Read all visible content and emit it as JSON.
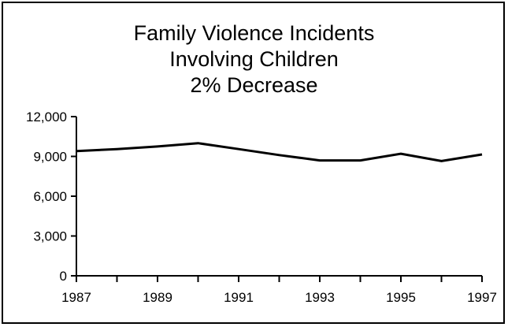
{
  "chart_data": {
    "type": "line",
    "title": [
      "Family Violence Incidents",
      "Involving Children",
      "2% Decrease"
    ],
    "xlabel": "",
    "ylabel": "",
    "x": [
      1987,
      1988,
      1989,
      1990,
      1991,
      1992,
      1993,
      1994,
      1995,
      1996,
      1997
    ],
    "x_tick_labels": [
      "1987",
      "1989",
      "1991",
      "1993",
      "1995",
      "1997"
    ],
    "y_tick_labels": [
      "0",
      "3,000",
      "6,000",
      "9,000",
      "12,000"
    ],
    "y_ticks": [
      0,
      3000,
      6000,
      9000,
      12000
    ],
    "ylim": [
      0,
      12000
    ],
    "xlim": [
      1987,
      1997
    ],
    "series": [
      {
        "values": [
          9400,
          9550,
          9750,
          10000,
          9550,
          9100,
          8700,
          8700,
          9200,
          8650,
          9150
        ]
      }
    ],
    "line_color": "#000000",
    "grid": false
  }
}
